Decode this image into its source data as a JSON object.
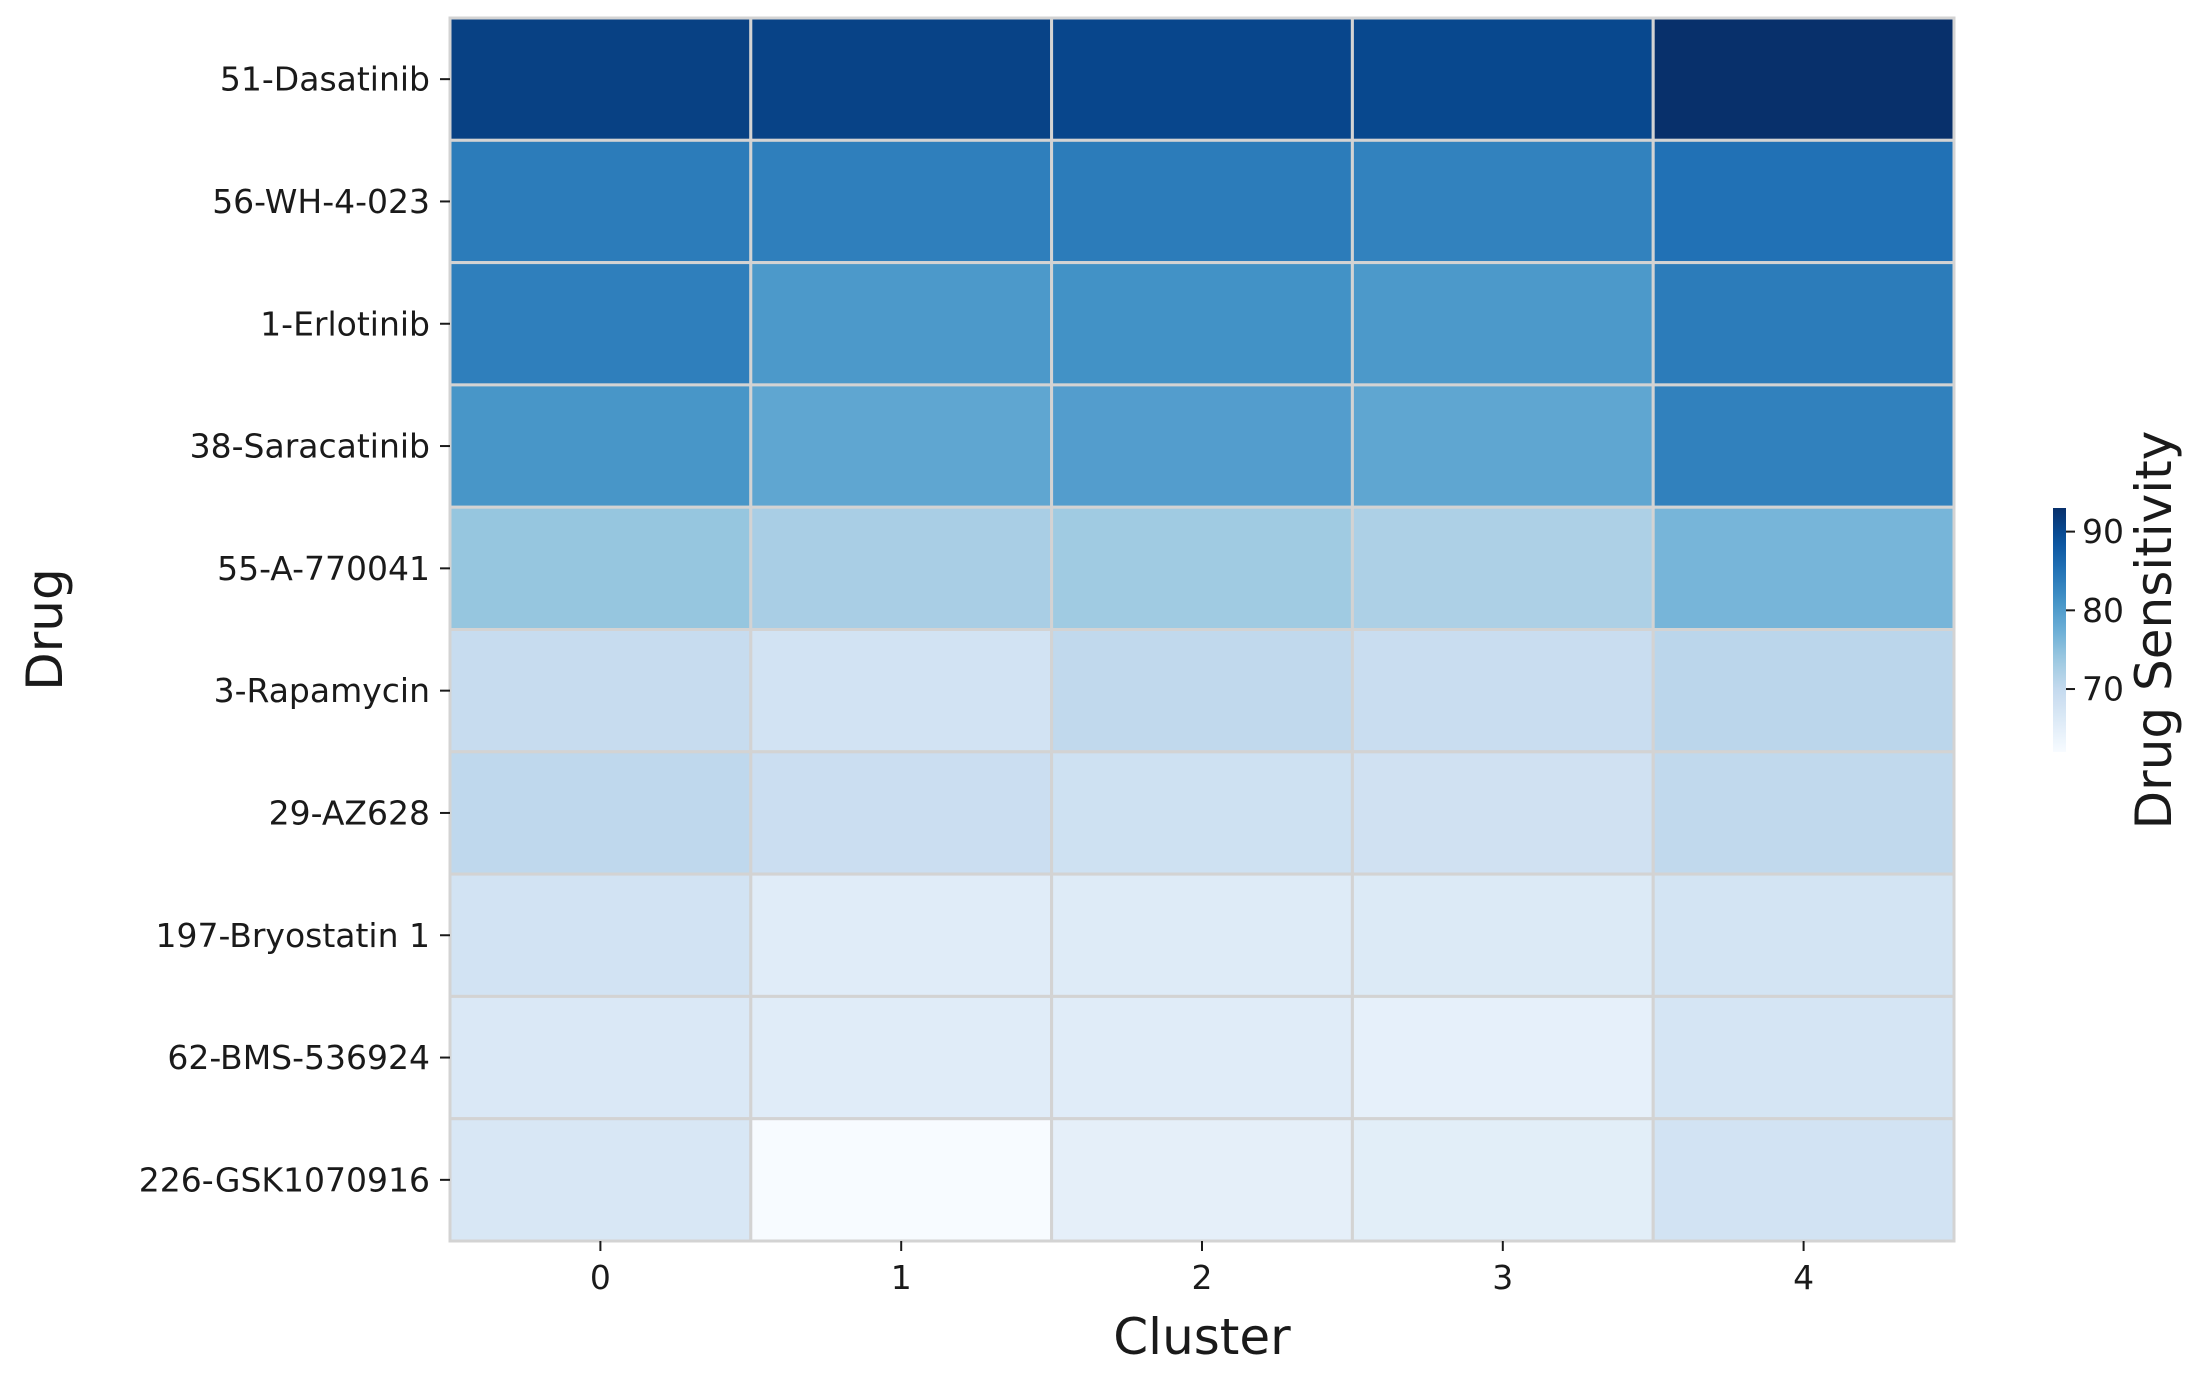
{
  "chart_data": {
    "type": "heatmap",
    "title": "",
    "xlabel": "Cluster",
    "ylabel": "Drug",
    "x_categories": [
      "0",
      "1",
      "2",
      "3",
      "4"
    ],
    "y_categories": [
      "51-Dasatinib",
      "56-WH-4-023",
      "1-Erlotinib",
      "38-Saracatinib",
      "55-A-770041",
      "3-Rapamycin",
      "29-AZ628",
      "197-Bryostatin 1",
      "62-BMS-536924",
      "226-GSK1070916"
    ],
    "values": [
      [
        91.0,
        90.8,
        90.4,
        90.2,
        93.0
      ],
      [
        84.0,
        83.6,
        84.0,
        83.2,
        85.2
      ],
      [
        83.6,
        80.4,
        81.4,
        80.4,
        84.0
      ],
      [
        80.8,
        78.6,
        79.8,
        78.6,
        83.4
      ],
      [
        74.2,
        72.6,
        73.4,
        72.2,
        76.6
      ],
      [
        69.6,
        67.8,
        70.2,
        69.2,
        70.8
      ],
      [
        70.4,
        69.0,
        68.4,
        68.2,
        70.2
      ],
      [
        67.8,
        65.6,
        65.8,
        66.2,
        67.6
      ],
      [
        66.6,
        65.6,
        65.6,
        64.6,
        67.4
      ],
      [
        66.8,
        62.0,
        64.8,
        65.2,
        67.8
      ]
    ],
    "colorbar": {
      "label": "Drug Sensitivity",
      "range": [
        62.0,
        93.0
      ],
      "ticks": [
        70,
        80,
        90
      ],
      "colormap": "Blues"
    },
    "grid_line_color": "#d3d3d3"
  }
}
